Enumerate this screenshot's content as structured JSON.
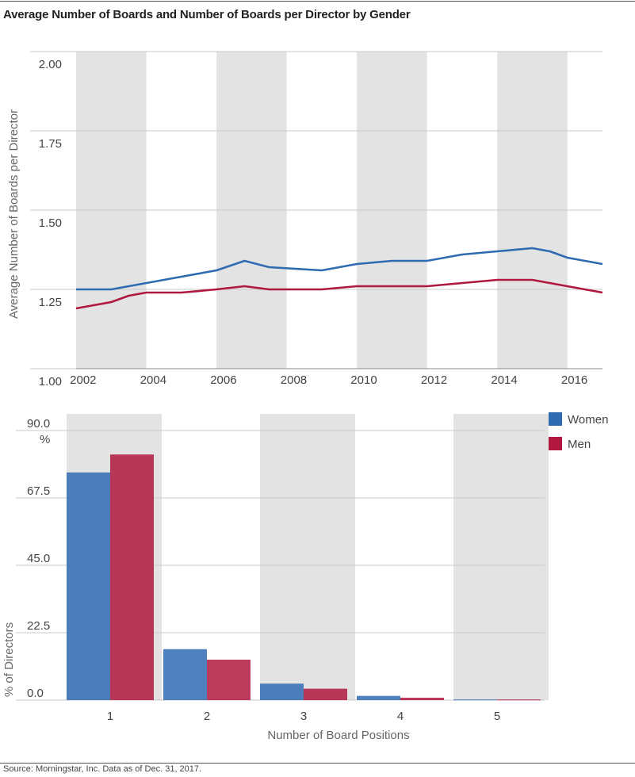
{
  "title": "Average Number of Boards and Number of Boards per Director by Gender",
  "source": "Source: Morningstar, Inc. Data as of Dec. 31, 2017.",
  "colors": {
    "women": "#2f6bb1",
    "men": "#b0183f",
    "band": "#e3e3e3",
    "grid": "#c8c8c8"
  },
  "chart_data": [
    {
      "type": "line",
      "title": "",
      "xlabel": "",
      "ylabel": "Average Number of Boards per Director",
      "ylim": [
        1.0,
        2.0
      ],
      "yticks": [
        "1.00",
        "1.25",
        "1.50",
        "1.75",
        "2.00"
      ],
      "xlim": [
        2001.8,
        2016.8
      ],
      "xticks": [
        "2002",
        "2004",
        "2006",
        "2008",
        "2010",
        "2012",
        "2014",
        "2016"
      ],
      "bands": [
        [
          2001.8,
          2003.8
        ],
        [
          2005.8,
          2007.8
        ],
        [
          2009.8,
          2011.8
        ],
        [
          2013.8,
          2015.8
        ]
      ],
      "grid": true,
      "series": [
        {
          "name": "Women",
          "x": [
            2001.8,
            2002.8,
            2003.3,
            2003.8,
            2004.8,
            2005.8,
            2006.6,
            2007.3,
            2008.8,
            2009.8,
            2010.8,
            2011.8,
            2012.8,
            2013.8,
            2014.8,
            2015.3,
            2015.8,
            2016.8
          ],
          "y": [
            1.25,
            1.25,
            1.26,
            1.27,
            1.29,
            1.31,
            1.34,
            1.32,
            1.31,
            1.33,
            1.34,
            1.34,
            1.36,
            1.37,
            1.38,
            1.37,
            1.35,
            1.33
          ]
        },
        {
          "name": "Men",
          "x": [
            2001.8,
            2002.8,
            2003.3,
            2003.8,
            2004.8,
            2005.8,
            2006.6,
            2007.3,
            2008.8,
            2009.8,
            2010.8,
            2011.8,
            2012.8,
            2013.8,
            2014.8,
            2015.3,
            2015.8,
            2016.8
          ],
          "y": [
            1.19,
            1.21,
            1.23,
            1.24,
            1.24,
            1.25,
            1.26,
            1.25,
            1.25,
            1.26,
            1.26,
            1.26,
            1.27,
            1.28,
            1.28,
            1.27,
            1.26,
            1.24
          ]
        }
      ]
    },
    {
      "type": "bar",
      "title": "",
      "xlabel": "Number of Board Positions",
      "ylabel": "% of Directors",
      "ylim": [
        0,
        90
      ],
      "yticks": [
        "0.0",
        "22.5",
        "45.0",
        "67.5",
        "90.0"
      ],
      "ytick_suffix": "%",
      "categories": [
        "1",
        "2",
        "3",
        "4",
        "5"
      ],
      "grid": true,
      "legend": "top-right",
      "series": [
        {
          "name": "Women",
          "values": [
            76.0,
            17.0,
            5.5,
            1.4,
            0.2
          ]
        },
        {
          "name": "Men",
          "values": [
            82.0,
            13.5,
            3.8,
            0.8,
            0.2
          ]
        }
      ]
    }
  ]
}
